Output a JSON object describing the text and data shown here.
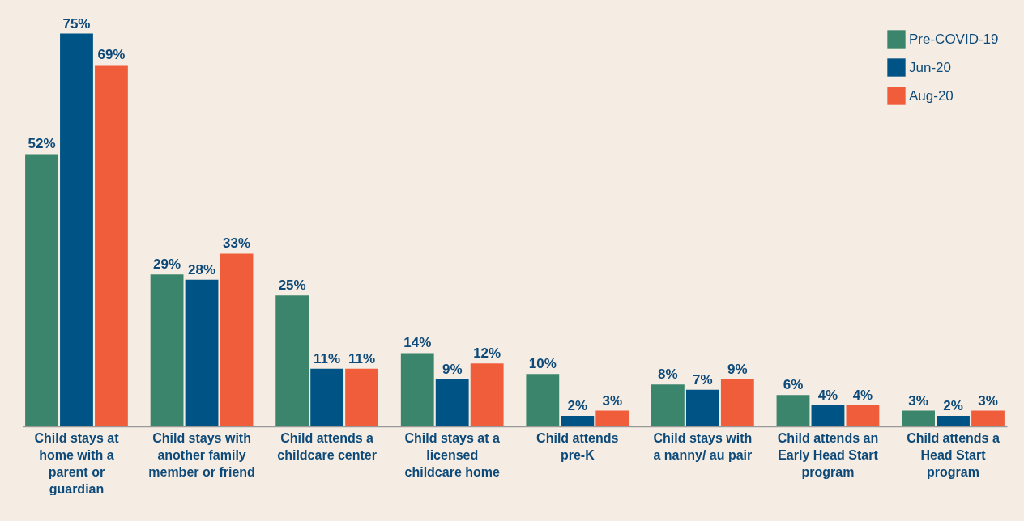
{
  "chart_data": {
    "type": "bar",
    "categories": [
      "Child stays at home with a parent or guardian",
      "Child stays with another family member or friend",
      "Child attends a childcare center",
      "Child stays at a licensed childcare home",
      "Child attends pre-K",
      "Child stays with a nanny/ au pair",
      "Child attends an Early Head Start program",
      "Child attends a Head Start program"
    ],
    "series": [
      {
        "name": "Pre-COVID-19",
        "color": "#3b856c",
        "values": [
          52,
          29,
          25,
          14,
          10,
          8,
          6,
          3
        ],
        "value_labels": [
          "52%",
          "29%",
          "25%",
          "14%",
          "10%",
          "8%",
          "6%",
          "3%"
        ]
      },
      {
        "name": "Jun-20",
        "color": "#005385",
        "values": [
          75,
          28,
          11,
          9,
          2,
          7,
          4,
          2
        ],
        "value_labels": [
          "75%",
          "28%",
          "11%",
          "9%",
          "2%",
          "7%",
          "4%",
          "2%"
        ]
      },
      {
        "name": "Aug-20",
        "color": "#f05d3b",
        "values": [
          69,
          33,
          11,
          12,
          3,
          9,
          4,
          3
        ],
        "value_labels": [
          "69%",
          "33%",
          "11%",
          "12%",
          "3%",
          "9%",
          "4%",
          "3%"
        ]
      }
    ],
    "legend": "top right",
    "grid": false
  }
}
